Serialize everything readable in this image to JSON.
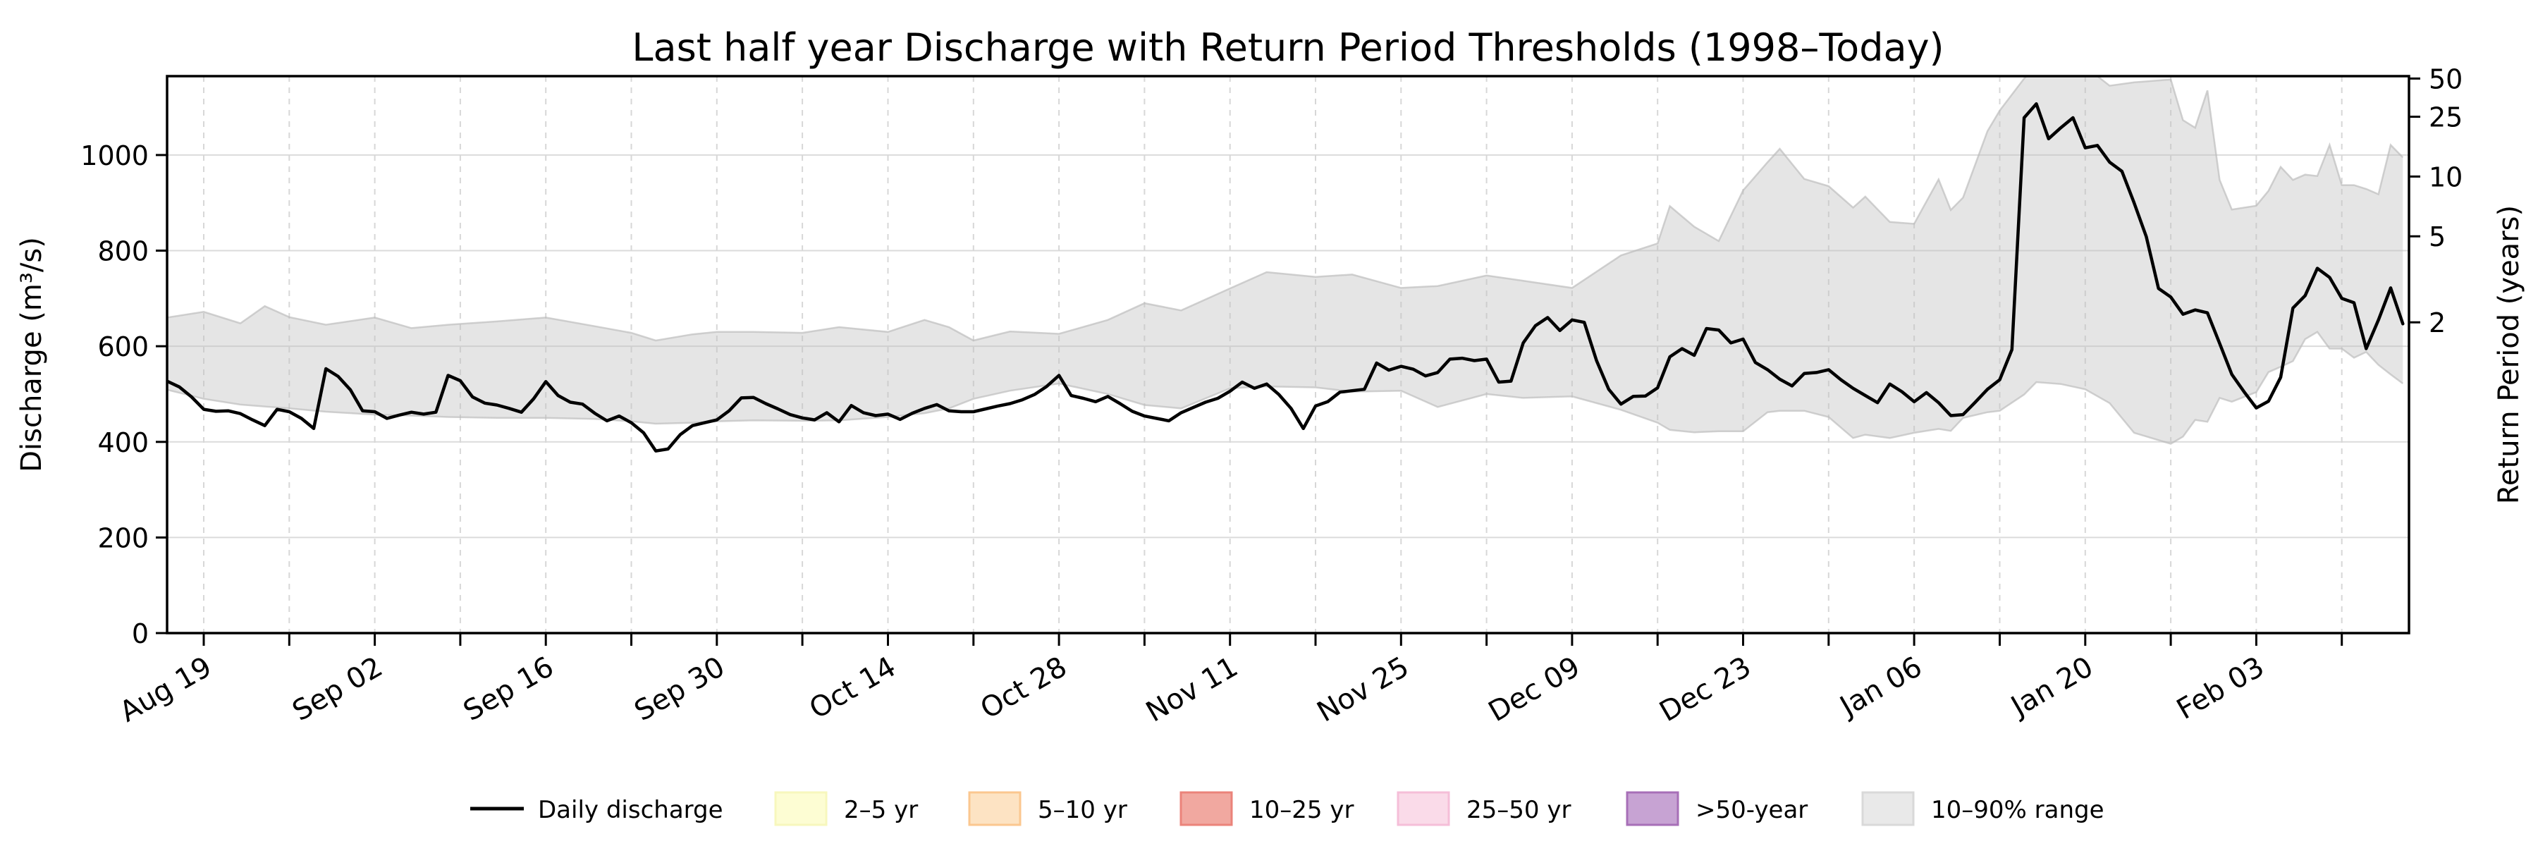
{
  "title": "Last half year Discharge with Return Period Thresholds (1998–Today)",
  "axes": {
    "left_label": "Discharge (m³/s)",
    "right_label": "Return Period (years)",
    "left_ticks": [
      0,
      200,
      400,
      600,
      800,
      1000
    ],
    "right_ticks": [
      [
        "2",
        650
      ],
      [
        "5",
        830
      ],
      [
        "10",
        955
      ],
      [
        "25",
        1080
      ],
      [
        "50",
        1160
      ]
    ],
    "x_labeled_ticks": [
      [
        "Aug 19",
        3
      ],
      [
        "Sep 02",
        17
      ],
      [
        "Sep 16",
        31
      ],
      [
        "Sep 30",
        45
      ],
      [
        "Oct 14",
        59
      ],
      [
        "Oct 28",
        73
      ],
      [
        "Nov 11",
        87
      ],
      [
        "Nov 25",
        101
      ],
      [
        "Dec 09",
        115
      ],
      [
        "Dec 23",
        129
      ],
      [
        "Jan 06",
        143
      ],
      [
        "Jan 20",
        157
      ],
      [
        "Feb 03",
        171
      ]
    ],
    "weekly_tick_days": [
      3,
      10,
      17,
      24,
      31,
      38,
      45,
      52,
      59,
      66,
      73,
      80,
      87,
      94,
      101,
      108,
      115,
      122,
      129,
      136,
      143,
      150,
      157,
      164,
      171,
      178
    ]
  },
  "legend": {
    "items": [
      {
        "label": "Daily discharge",
        "swatch": "line",
        "color": "#000000"
      },
      {
        "label": "2–5 yr",
        "swatch": "patch",
        "fill": "#fdfdd3",
        "border": "#f7f7bd"
      },
      {
        "label": "5–10 yr",
        "swatch": "patch",
        "fill": "#fde3c3",
        "border": "#fbc78f"
      },
      {
        "label": "10–25 yr",
        "swatch": "patch",
        "fill": "#f1a8a0",
        "border": "#eb837a"
      },
      {
        "label": "25–50 yr",
        "swatch": "patch",
        "fill": "#fadbe9",
        "border": "#f5bed8"
      },
      {
        "label": ">50-year",
        "swatch": "patch",
        "fill": "#c7a3d3",
        "border": "#a76fb7"
      },
      {
        "label": "10–90% range",
        "swatch": "patch",
        "fill": "#e9e9e9",
        "border": "#d9d9d9"
      }
    ]
  },
  "chart_data": {
    "type": "line",
    "title": "Last half year Discharge with Return Period Thresholds (1998–Today)",
    "xlabel": "",
    "ylabel_left": "Discharge (m³/s)",
    "ylabel_right": "Return Period (years)",
    "ylim_left": [
      0,
      1165
    ],
    "grid": true,
    "legend_position": "bottom",
    "x_start_date": "Aug 16",
    "x_end_date": "Feb 15",
    "days_per_point": 1,
    "x_tick_labels": [
      "Aug 19",
      "Sep 02",
      "Sep 16",
      "Sep 30",
      "Oct 14",
      "Oct 28",
      "Nov 11",
      "Nov 25",
      "Dec 09",
      "Dec 23",
      "Jan 06",
      "Jan 20",
      "Feb 03"
    ],
    "daily_discharge_values": [
      527,
      515,
      494,
      468,
      464,
      465,
      459,
      446,
      434,
      468,
      463,
      449,
      428,
      553,
      537,
      509,
      465,
      463,
      449,
      456,
      462,
      458,
      462,
      539,
      528,
      494,
      481,
      477,
      470,
      462,
      490,
      526,
      497,
      483,
      479,
      460,
      444,
      454,
      440,
      419,
      381,
      385,
      415,
      434,
      440,
      446,
      465,
      492,
      493,
      480,
      469,
      457,
      450,
      446,
      461,
      442,
      476,
      461,
      455,
      458,
      447,
      460,
      470,
      478,
      465,
      463,
      463,
      469,
      475,
      480,
      488,
      499,
      516,
      539,
      497,
      491,
      484,
      495,
      480,
      464,
      454,
      449,
      444,
      461,
      472,
      483,
      491,
      506,
      525,
      512,
      521,
      499,
      470,
      428,
      475,
      484,
      504,
      507,
      510,
      565,
      550,
      558,
      552,
      538,
      545,
      573,
      575,
      570,
      573,
      525,
      527,
      607,
      643,
      660,
      633,
      655,
      650,
      570,
      510,
      479,
      495,
      496,
      513,
      578,
      595,
      581,
      637,
      634,
      607,
      615,
      566,
      551,
      531,
      517,
      543,
      545,
      551,
      530,
      512,
      497,
      482,
      521,
      505,
      484,
      503,
      482,
      455,
      457,
      483,
      510,
      530,
      593,
      1078,
      1107,
      1034,
      1057,
      1078,
      1015,
      1020,
      985,
      966,
      900,
      829,
      721,
      703,
      667,
      676,
      670,
      606,
      541,
      505,
      471,
      485,
      535,
      680,
      706,
      763,
      744,
      700,
      691,
      595,
      655,
      722,
      647
    ],
    "percentile_band_10_90": [
      [
        0,
        509,
        660
      ],
      [
        3,
        490,
        672
      ],
      [
        6,
        478,
        648
      ],
      [
        8,
        474,
        684
      ],
      [
        10,
        470,
        661
      ],
      [
        13,
        463,
        645
      ],
      [
        17,
        457,
        660
      ],
      [
        20,
        455,
        638
      ],
      [
        23,
        452,
        645
      ],
      [
        27,
        450,
        652
      ],
      [
        31,
        450,
        660
      ],
      [
        35,
        448,
        642
      ],
      [
        38,
        443,
        628
      ],
      [
        40,
        438,
        612
      ],
      [
        43,
        440,
        625
      ],
      [
        45,
        443,
        630
      ],
      [
        48,
        445,
        630
      ],
      [
        52,
        444,
        628
      ],
      [
        55,
        445,
        640
      ],
      [
        59,
        452,
        630
      ],
      [
        62,
        460,
        655
      ],
      [
        64,
        470,
        640
      ],
      [
        66,
        490,
        612
      ],
      [
        69,
        507,
        631
      ],
      [
        73,
        522,
        626
      ],
      [
        77,
        500,
        655
      ],
      [
        80,
        477,
        690
      ],
      [
        83,
        470,
        675
      ],
      [
        87,
        512,
        721
      ],
      [
        90,
        516,
        755
      ],
      [
        94,
        514,
        745
      ],
      [
        97,
        505,
        750
      ],
      [
        101,
        507,
        722
      ],
      [
        104,
        473,
        726
      ],
      [
        108,
        500,
        748
      ],
      [
        111,
        492,
        737
      ],
      [
        115,
        495,
        722
      ],
      [
        119,
        467,
        790
      ],
      [
        122,
        440,
        815
      ],
      [
        123,
        425,
        893
      ],
      [
        125,
        420,
        850
      ],
      [
        127,
        422,
        820
      ],
      [
        129,
        422,
        926
      ],
      [
        131,
        462,
        985
      ],
      [
        132,
        465,
        1013
      ],
      [
        134,
        465,
        950
      ],
      [
        136,
        452,
        935
      ],
      [
        138,
        408,
        890
      ],
      [
        139,
        415,
        913
      ],
      [
        141,
        408,
        860
      ],
      [
        143,
        419,
        856
      ],
      [
        145,
        427,
        949
      ],
      [
        146,
        423,
        885
      ],
      [
        147,
        450,
        911
      ],
      [
        149,
        462,
        1050
      ],
      [
        150,
        465,
        1093
      ],
      [
        152,
        499,
        1160
      ],
      [
        153,
        525,
        1185
      ],
      [
        155,
        521,
        1185
      ],
      [
        157,
        510,
        1185
      ],
      [
        159,
        481,
        1145
      ],
      [
        161,
        419,
        1152
      ],
      [
        164,
        396,
        1158
      ],
      [
        165,
        411,
        1073
      ],
      [
        166,
        446,
        1057
      ],
      [
        167,
        442,
        1135
      ],
      [
        168,
        492,
        948
      ],
      [
        169,
        484,
        886
      ],
      [
        171,
        504,
        894
      ],
      [
        172,
        546,
        925
      ],
      [
        173,
        557,
        975
      ],
      [
        174,
        569,
        948
      ],
      [
        175,
        615,
        959
      ],
      [
        176,
        630,
        956
      ],
      [
        177,
        595,
        1021
      ],
      [
        178,
        595,
        937
      ],
      [
        179,
        576,
        937
      ],
      [
        180,
        588,
        929
      ],
      [
        181,
        561,
        918
      ],
      [
        182,
        541,
        1021
      ],
      [
        183,
        522,
        995
      ]
    ],
    "return_period_thresholds": [
      {
        "years": "2",
        "discharge": 650
      },
      {
        "years": "5",
        "discharge": 830
      },
      {
        "years": "10",
        "discharge": 955
      },
      {
        "years": "25",
        "discharge": 1080
      },
      {
        "years": "50",
        "discharge": 1160
      }
    ]
  }
}
